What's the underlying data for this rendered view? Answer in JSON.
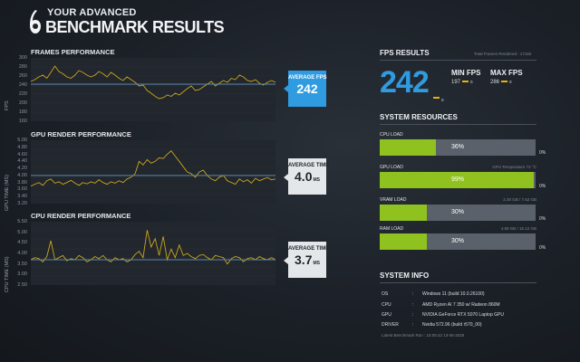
{
  "header": {
    "line1": "YOUR ADVANCED",
    "line2": "BENCHMARK RESULTS"
  },
  "frames": {
    "title": "FRAMES PERFORMANCE",
    "ylabel": "FPS",
    "badge_label": "AVERAGE FPS",
    "badge_value": "242",
    "ticks": [
      "300",
      "280",
      "260",
      "240",
      "220",
      "200",
      "180",
      "160"
    ]
  },
  "gpu_render": {
    "title": "GPU RENDER PERFORMANCE",
    "ylabel": "GPU TIME (MS)",
    "badge_label": "AVERAGE TIME",
    "badge_value": "4.0",
    "badge_unit": "MS",
    "ticks": [
      "5.00",
      "4.80",
      "4.60",
      "4.40",
      "4.20",
      "4.00",
      "3.80",
      "3.60",
      "3.40",
      "3.20"
    ]
  },
  "cpu_render": {
    "title": "CPU RENDER PERFORMANCE",
    "ylabel": "CPU TIME (MS)",
    "badge_label": "AVERAGE TIME",
    "badge_value": "3.7",
    "badge_unit": "MS",
    "ticks": [
      "5.50",
      "5.00",
      "4.50",
      "4.00",
      "3.50",
      "3.00",
      "2.50"
    ]
  },
  "fps_results": {
    "title": "FPS RESULTS",
    "total_frames": "Total Frames Rendered : 17182",
    "avg_value": "242",
    "avg_zero": "0",
    "min_label": "MIN FPS",
    "min_value": "197",
    "min_zero": "0",
    "max_label": "MAX FPS",
    "max_value": "286",
    "max_zero": "0"
  },
  "system_resources": {
    "title": "SYSTEM RESOURCES",
    "items": [
      {
        "label": "CPU LOAD",
        "extra": "",
        "percent": "36%",
        "zero": "0%",
        "fill": 0.36
      },
      {
        "label": "GPU LOAD",
        "extra": "GPU Temperature 72 °C",
        "percent": "99%",
        "zero": "0%",
        "fill": 0.99
      },
      {
        "label": "VRAM LOAD",
        "extra": "2.30 GB / 7.62 GB",
        "percent": "30%",
        "zero": "0%",
        "fill": 0.3
      },
      {
        "label": "RAM LOAD",
        "extra": "4.59 GB / 15.12 GB",
        "percent": "30%",
        "zero": "0%",
        "fill": 0.3
      }
    ]
  },
  "system_info": {
    "title": "SYSTEM INFO",
    "rows": [
      {
        "key": "OS",
        "value": "Windows 11 (build 10.0.26100)"
      },
      {
        "key": "CPU",
        "value": "AMD Ryzen AI 7 350 w/ Radeon 860M"
      },
      {
        "key": "GPU",
        "value": "NVIDIA GeForce RTX 5070 Laptop GPU"
      },
      {
        "key": "DRIVER",
        "value": "Nvidia 572.96 (build r570_00)"
      }
    ],
    "colon": ":",
    "last_run": "Latest Benchmark Run : 15:05:42 13-05-2025"
  },
  "colors": {
    "fps_blue": "#2f9be0",
    "trace_yellow": "#c9a61c",
    "avg_line": "#5a88b0",
    "bar_green": "#8fc21e",
    "bar_grey": "#5b616a"
  },
  "chart_data": [
    {
      "type": "line",
      "title": "FRAMES PERFORMANCE",
      "ylabel": "FPS",
      "ylim": [
        160,
        300
      ],
      "average": 242,
      "series": [
        {
          "values": [
            248,
            252,
            258,
            262,
            255,
            268,
            282,
            270,
            265,
            258,
            255,
            262,
            272,
            268,
            262,
            258,
            262,
            270,
            265,
            258,
            268,
            262,
            255,
            250,
            258,
            252,
            246,
            238,
            240,
            228,
            222,
            215,
            210,
            212,
            218,
            215,
            222,
            218,
            225,
            232,
            238,
            228,
            230,
            236,
            242,
            248,
            238,
            244,
            250,
            246,
            255,
            252,
            262,
            258,
            250,
            248,
            252,
            244,
            240,
            246,
            250,
            246
          ]
        }
      ]
    },
    {
      "type": "line",
      "title": "GPU RENDER PERFORMANCE",
      "ylabel": "GPU TIME (MS)",
      "ylim": [
        3.2,
        5.0
      ],
      "average": 4.0,
      "series": [
        {
          "values": [
            3.7,
            3.75,
            3.8,
            3.72,
            3.85,
            3.9,
            3.78,
            3.82,
            3.75,
            3.8,
            3.86,
            3.78,
            3.72,
            3.8,
            3.76,
            3.82,
            3.78,
            3.88,
            3.8,
            3.75,
            3.82,
            3.78,
            3.85,
            3.8,
            3.9,
            3.95,
            4.05,
            4.4,
            4.3,
            4.45,
            4.35,
            4.4,
            4.5,
            4.48,
            4.6,
            4.7,
            4.55,
            4.4,
            4.25,
            4.1,
            4.05,
            3.95,
            4.1,
            4.15,
            4.0,
            3.9,
            3.85,
            3.95,
            4.0,
            3.85,
            3.8,
            3.75,
            3.9,
            3.82,
            3.88,
            3.78,
            3.92,
            3.85,
            3.9,
            3.94,
            3.88,
            3.9
          ]
        }
      ]
    },
    {
      "type": "line",
      "title": "CPU RENDER PERFORMANCE",
      "ylabel": "CPU TIME (MS)",
      "ylim": [
        2.5,
        5.5
      ],
      "average": 3.7,
      "series": [
        {
          "values": [
            3.7,
            3.8,
            3.75,
            3.6,
            3.85,
            4.6,
            3.7,
            3.8,
            3.9,
            3.65,
            3.75,
            3.7,
            3.9,
            3.8,
            3.6,
            3.7,
            3.85,
            3.75,
            3.9,
            3.7,
            3.6,
            3.8,
            3.7,
            3.75,
            3.6,
            3.7,
            3.95,
            4.1,
            3.8,
            5.1,
            4.3,
            4.7,
            3.9,
            4.8,
            3.7,
            4.2,
            3.8,
            4.4,
            3.9,
            4.0,
            3.85,
            3.75,
            3.9,
            3.95,
            3.8,
            3.7,
            3.9,
            3.85,
            3.8,
            3.5,
            3.75,
            3.85,
            3.8,
            3.6,
            3.75,
            3.8,
            3.7,
            3.85,
            3.75,
            3.7,
            3.8,
            3.7
          ]
        }
      ]
    }
  ]
}
